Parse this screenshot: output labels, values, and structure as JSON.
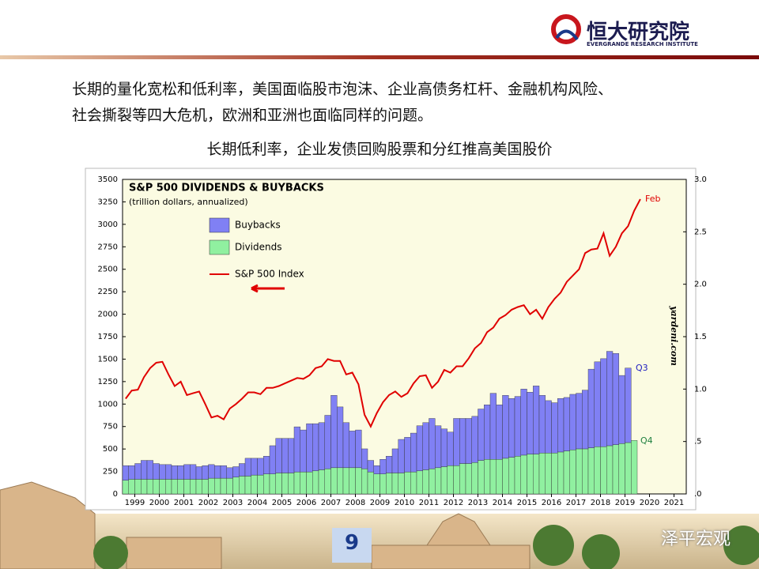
{
  "header": {
    "logo_cn": "恒大研究院",
    "logo_en": "EVERGRANDE RESEARCH INSTITUTE"
  },
  "body": {
    "lines": [
      "长期的量化宽松和低利率，美国面临股市泡沫、企业高债务杠杆、金融机构风险、",
      "社会撕裂等四大危机，欧洲和亚洲也面临同样的问题。"
    ],
    "caption": "长期低利率，企业发债回购股票和分红推高美国股价"
  },
  "chart_data": {
    "type": "bar",
    "stacked": true,
    "title": "S&P 500 DIVIDENDS & BUYBACKS",
    "subtitle": "(trillion dollars, annualized)",
    "xlim": [
      1999,
      2022
    ],
    "xticks": [
      {
        "value": 1999.5,
        "label": "1999"
      },
      {
        "value": 2000.5,
        "label": "2000"
      },
      {
        "value": 2001.5,
        "label": "2001"
      },
      {
        "value": 2002.5,
        "label": "2002"
      },
      {
        "value": 2003.5,
        "label": "2003"
      },
      {
        "value": 2004.5,
        "label": "2004"
      },
      {
        "value": 2005.5,
        "label": "2005"
      },
      {
        "value": 2006.5,
        "label": "2006"
      },
      {
        "value": 2007.5,
        "label": "2007"
      },
      {
        "value": 2008.5,
        "label": "2008"
      },
      {
        "value": 2009.5,
        "label": "2009"
      },
      {
        "value": 2010.5,
        "label": "2010"
      },
      {
        "value": 2011.5,
        "label": "2011"
      },
      {
        "value": 2012.5,
        "label": "2012"
      },
      {
        "value": 2013.5,
        "label": "2013"
      },
      {
        "value": 2014.5,
        "label": "2014"
      },
      {
        "value": 2015.5,
        "label": "2015"
      },
      {
        "value": 2016.5,
        "label": "2016"
      },
      {
        "value": 2017.5,
        "label": "2017"
      },
      {
        "value": 2018.5,
        "label": "2018"
      },
      {
        "value": 2019.5,
        "label": "2019"
      },
      {
        "value": 2020.5,
        "label": "2020"
      },
      {
        "value": 2021.5,
        "label": "2021"
      }
    ],
    "ylim": [
      0,
      3500
    ],
    "yticks": [
      0,
      250,
      500,
      750,
      1000,
      1250,
      1500,
      1750,
      2000,
      2250,
      2500,
      2750,
      3000,
      3250,
      3500
    ],
    "y2lim": [
      0,
      3
    ],
    "y2ticks": [
      {
        "value": 0,
        "label": ".0"
      },
      {
        "value": 0.5,
        "label": ".5"
      },
      {
        "value": 1,
        "label": "1.0"
      },
      1.5,
      {
        "value": 2,
        "label": "2.0"
      },
      2.5,
      {
        "value": 3,
        "label": "3.0"
      }
    ],
    "series": [
      {
        "name": "Buybacks",
        "type": "bar",
        "axis": "y2",
        "color": "#8080f4",
        "stack_on": 1,
        "x": [
          1999.125,
          1999.375,
          1999.625,
          1999.875,
          2000.125,
          2000.375,
          2000.625,
          2000.875,
          2001.125,
          2001.375,
          2001.625,
          2001.875,
          2002.125,
          2002.375,
          2002.625,
          2002.875,
          2003.125,
          2003.375,
          2003.625,
          2003.875,
          2004.125,
          2004.375,
          2004.625,
          2004.875,
          2005.125,
          2005.375,
          2005.625,
          2005.875,
          2006.125,
          2006.375,
          2006.625,
          2006.875,
          2007.125,
          2007.375,
          2007.625,
          2007.875,
          2008.125,
          2008.375,
          2008.625,
          2008.875,
          2009.125,
          2009.375,
          2009.625,
          2009.875,
          2010.125,
          2010.375,
          2010.625,
          2010.875,
          2011.125,
          2011.375,
          2011.625,
          2011.875,
          2012.125,
          2012.375,
          2012.625,
          2012.875,
          2013.125,
          2013.375,
          2013.625,
          2013.875,
          2014.125,
          2014.375,
          2014.625,
          2014.875,
          2015.125,
          2015.375,
          2015.625,
          2015.875,
          2016.125,
          2016.375,
          2016.625,
          2016.875,
          2017.125,
          2017.375,
          2017.625,
          2017.875,
          2018.125,
          2018.375,
          2018.625,
          2018.875,
          2019.125,
          2019.375,
          2019.625,
          2019.875
        ],
        "values": [
          0.14,
          0.13,
          0.15,
          0.18,
          0.18,
          0.15,
          0.14,
          0.14,
          0.13,
          0.13,
          0.14,
          0.14,
          0.12,
          0.13,
          0.13,
          0.12,
          0.12,
          0.1,
          0.1,
          0.12,
          0.17,
          0.16,
          0.16,
          0.17,
          0.27,
          0.33,
          0.33,
          0.33,
          0.43,
          0.4,
          0.46,
          0.45,
          0.45,
          0.51,
          0.69,
          0.58,
          0.43,
          0.35,
          0.36,
          0.19,
          0.11,
          0.08,
          0.14,
          0.16,
          0.23,
          0.32,
          0.33,
          0.37,
          0.43,
          0.45,
          0.48,
          0.4,
          0.36,
          0.32,
          0.45,
          0.43,
          0.43,
          0.44,
          0.49,
          0.52,
          0.63,
          0.52,
          0.6,
          0.56,
          0.57,
          0.63,
          0.59,
          0.65,
          0.55,
          0.5,
          0.48,
          0.51,
          0.51,
          0.53,
          0.53,
          0.56,
          0.75,
          0.81,
          0.84,
          0.9,
          0.87,
          0.65,
          0.71,
          null
        ]
      },
      {
        "name": "Dividends",
        "type": "bar",
        "axis": "y2",
        "color": "#90f0a0",
        "x": [
          1999.125,
          1999.375,
          1999.625,
          1999.875,
          2000.125,
          2000.375,
          2000.625,
          2000.875,
          2001.125,
          2001.375,
          2001.625,
          2001.875,
          2002.125,
          2002.375,
          2002.625,
          2002.875,
          2003.125,
          2003.375,
          2003.625,
          2003.875,
          2004.125,
          2004.375,
          2004.625,
          2004.875,
          2005.125,
          2005.375,
          2005.625,
          2005.875,
          2006.125,
          2006.375,
          2006.625,
          2006.875,
          2007.125,
          2007.375,
          2007.625,
          2007.875,
          2008.125,
          2008.375,
          2008.625,
          2008.875,
          2009.125,
          2009.375,
          2009.625,
          2009.875,
          2010.125,
          2010.375,
          2010.625,
          2010.875,
          2011.125,
          2011.375,
          2011.625,
          2011.875,
          2012.125,
          2012.375,
          2012.625,
          2012.875,
          2013.125,
          2013.375,
          2013.625,
          2013.875,
          2014.125,
          2014.375,
          2014.625,
          2014.875,
          2015.125,
          2015.375,
          2015.625,
          2015.875,
          2016.125,
          2016.375,
          2016.625,
          2016.875,
          2017.125,
          2017.375,
          2017.625,
          2017.875,
          2018.125,
          2018.375,
          2018.625,
          2018.875,
          2019.125,
          2019.375,
          2019.625,
          2019.875
        ],
        "values": [
          0.13,
          0.14,
          0.14,
          0.14,
          0.14,
          0.14,
          0.14,
          0.14,
          0.14,
          0.14,
          0.14,
          0.14,
          0.14,
          0.14,
          0.15,
          0.15,
          0.15,
          0.15,
          0.16,
          0.17,
          0.17,
          0.18,
          0.18,
          0.19,
          0.19,
          0.2,
          0.2,
          0.2,
          0.21,
          0.21,
          0.21,
          0.22,
          0.23,
          0.24,
          0.25,
          0.25,
          0.25,
          0.25,
          0.25,
          0.24,
          0.21,
          0.19,
          0.19,
          0.2,
          0.2,
          0.2,
          0.21,
          0.21,
          0.22,
          0.23,
          0.24,
          0.25,
          0.26,
          0.27,
          0.27,
          0.29,
          0.29,
          0.3,
          0.32,
          0.33,
          0.33,
          0.33,
          0.34,
          0.35,
          0.36,
          0.37,
          0.38,
          0.38,
          0.39,
          0.39,
          0.39,
          0.4,
          0.41,
          0.42,
          0.43,
          0.43,
          0.44,
          0.45,
          0.45,
          0.46,
          0.47,
          0.48,
          0.49,
          0.51
        ]
      },
      {
        "name": "S&P 500 Index",
        "type": "line",
        "axis": "y",
        "color": "#e00000",
        "x": [
          1999.125,
          1999.375,
          1999.625,
          1999.875,
          2000.125,
          2000.375,
          2000.625,
          2000.875,
          2001.125,
          2001.375,
          2001.625,
          2001.875,
          2002.125,
          2002.375,
          2002.625,
          2002.875,
          2003.125,
          2003.375,
          2003.625,
          2003.875,
          2004.125,
          2004.375,
          2004.625,
          2004.875,
          2005.125,
          2005.375,
          2005.625,
          2005.875,
          2006.125,
          2006.375,
          2006.625,
          2006.875,
          2007.125,
          2007.375,
          2007.625,
          2007.875,
          2008.125,
          2008.375,
          2008.625,
          2008.875,
          2009.125,
          2009.375,
          2009.625,
          2009.875,
          2010.125,
          2010.375,
          2010.625,
          2010.875,
          2011.125,
          2011.375,
          2011.625,
          2011.875,
          2012.125,
          2012.375,
          2012.625,
          2012.875,
          2013.125,
          2013.375,
          2013.625,
          2013.875,
          2014.125,
          2014.375,
          2014.625,
          2014.875,
          2015.125,
          2015.375,
          2015.625,
          2015.875,
          2016.125,
          2016.375,
          2016.625,
          2016.875,
          2017.125,
          2017.375,
          2017.625,
          2017.875,
          2018.125,
          2018.375,
          2018.625,
          2018.875,
          2019.125,
          2019.375,
          2019.625,
          2019.875,
          2020.125
        ],
        "values": [
          1060,
          1150,
          1160,
          1300,
          1400,
          1460,
          1470,
          1330,
          1200,
          1250,
          1100,
          1120,
          1140,
          1000,
          850,
          870,
          830,
          950,
          1000,
          1060,
          1130,
          1130,
          1110,
          1180,
          1180,
          1200,
          1230,
          1260,
          1290,
          1280,
          1320,
          1400,
          1420,
          1500,
          1480,
          1480,
          1330,
          1350,
          1220,
          880,
          750,
          900,
          1020,
          1100,
          1140,
          1080,
          1120,
          1230,
          1310,
          1320,
          1180,
          1250,
          1380,
          1350,
          1420,
          1420,
          1510,
          1620,
          1680,
          1800,
          1850,
          1950,
          1990,
          2050,
          2080,
          2100,
          2000,
          2050,
          1950,
          2080,
          2170,
          2240,
          2360,
          2430,
          2500,
          2680,
          2720,
          2730,
          2900,
          2650,
          2750,
          2900,
          2980,
          3150,
          3280
        ]
      }
    ],
    "annotations": [
      "Feb",
      "Q3",
      "Q4",
      "yardeni.com"
    ]
  },
  "footer": {
    "page_number": "9",
    "watermark": "泽平宏观"
  }
}
